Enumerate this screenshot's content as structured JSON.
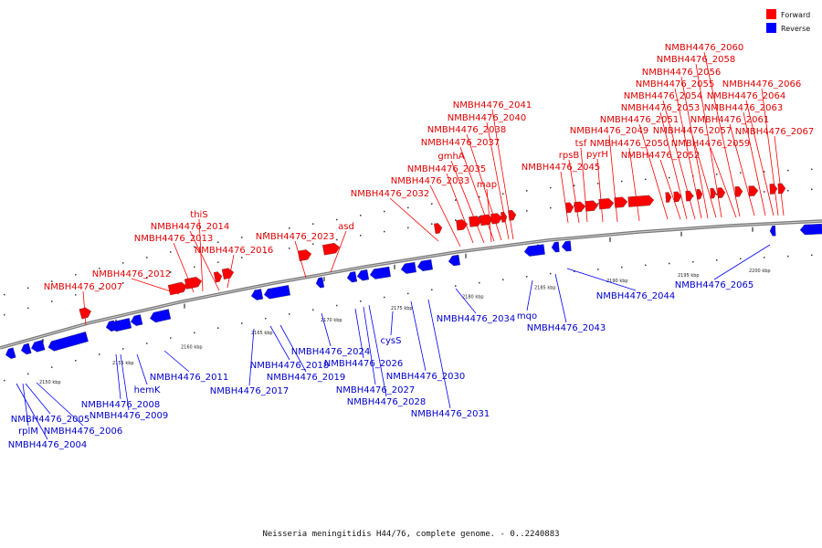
{
  "caption": "Neisseria meningitidis H44/76, complete genome. - 0..2240883",
  "legend": [
    {
      "label": "Forward",
      "color": "#ff0000"
    },
    {
      "label": "Reverse",
      "color": "#0000ff"
    }
  ],
  "colors": {
    "forward": "#ff0000",
    "reverse": "#0000ff",
    "forward_text": "#e00000",
    "reverse_text": "#0000cc",
    "backbone": "#7a7a7a"
  },
  "ticks": [
    "2150 kbp",
    "2155 kbp",
    "2160 kbp",
    "2165 kbp",
    "2170 kbp",
    "2175 kbp",
    "2180 kbp",
    "2185 kbp",
    "2190 kbp",
    "2195 kbp",
    "2200 kbp"
  ],
  "forward_genes": [
    "NMBH4476_2007",
    "NMBH4476_2012",
    "NMBH4476_2013",
    "thiS",
    "NMBH4476_2014",
    "NMBH4476_2016",
    "NMBH4476_2023",
    "asd",
    "NMBH4476_2032",
    "NMBH4476_2033",
    "NMBH4476_2035",
    "gmhA",
    "NMBH4476_2037",
    "NMBH4476_2038",
    "NMBH4476_2040",
    "NMBH4476_2041",
    "map",
    "NMBH4476_2045",
    "rpsB",
    "tsf",
    "pyrH",
    "NMBH4476_2049",
    "NMBH4476_2050",
    "NMBH4476_2051",
    "NMBH4476_2052",
    "NMBH4476_2053",
    "NMBH4476_2054",
    "NMBH4476_2055",
    "NMBH4476_2056",
    "NMBH4476_2057",
    "NMBH4476_2058",
    "NMBH4476_2059",
    "NMBH4476_2060",
    "NMBH4476_2061",
    "NMBH4476_2063",
    "NMBH4476_2064",
    "NMBH4476_2066",
    "NMBH4476_2067"
  ],
  "reverse_genes": [
    "NMBH4476_2004",
    "rplM",
    "NMBH4476_2005",
    "NMBH4476_2006",
    "NMBH4476_2008",
    "NMBH4476_2009",
    "hemK",
    "NMBH4476_2011",
    "NMBH4476_2017",
    "NMBH4476_2018",
    "NMBH4476_2019",
    "NMBH4476_2024",
    "NMBH4476_2026",
    "NMBH4476_2027",
    "NMBH4476_2028",
    "cysS",
    "NMBH4476_2030",
    "NMBH4476_2031",
    "NMBH4476_2034",
    "mqo",
    "NMBH4476_2043",
    "NMBH4476_2044",
    "NMBH4476_2065"
  ]
}
